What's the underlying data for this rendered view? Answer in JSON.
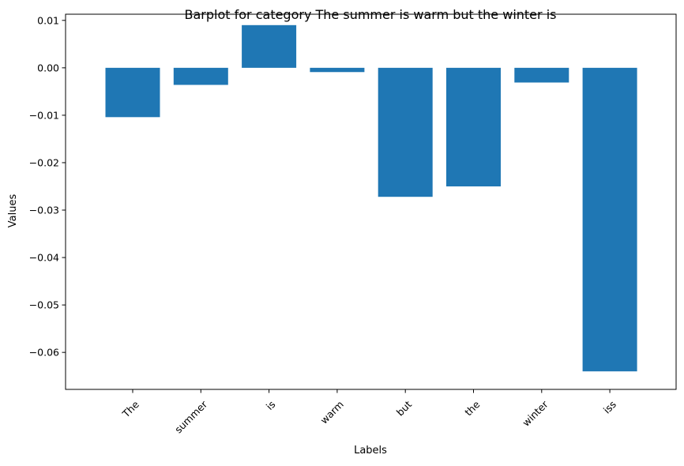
{
  "chart_data": {
    "type": "bar",
    "title": "Barplot for category The summer is warm but the winter is",
    "xlabel": "Labels",
    "ylabel": "Values",
    "categories": [
      "The",
      "summer",
      "is",
      "warm",
      "but",
      "the",
      "winter",
      "iss"
    ],
    "values": [
      -0.0104,
      -0.0036,
      0.009,
      -0.0009,
      -0.0272,
      -0.025,
      -0.0031,
      -0.064
    ],
    "ylim": [
      -0.0678,
      0.0113
    ],
    "yticks": [
      0.01,
      0.0,
      -0.01,
      -0.02,
      -0.03,
      -0.04,
      -0.05,
      -0.06
    ],
    "ytick_labels": [
      "0.01",
      "0.00",
      "−0.01",
      "−0.02",
      "−0.03",
      "−0.04",
      "−0.05",
      "−0.06"
    ],
    "xtick_rotation": 45,
    "bar_color": "#1f77b4",
    "grid": false,
    "legend": "none"
  }
}
